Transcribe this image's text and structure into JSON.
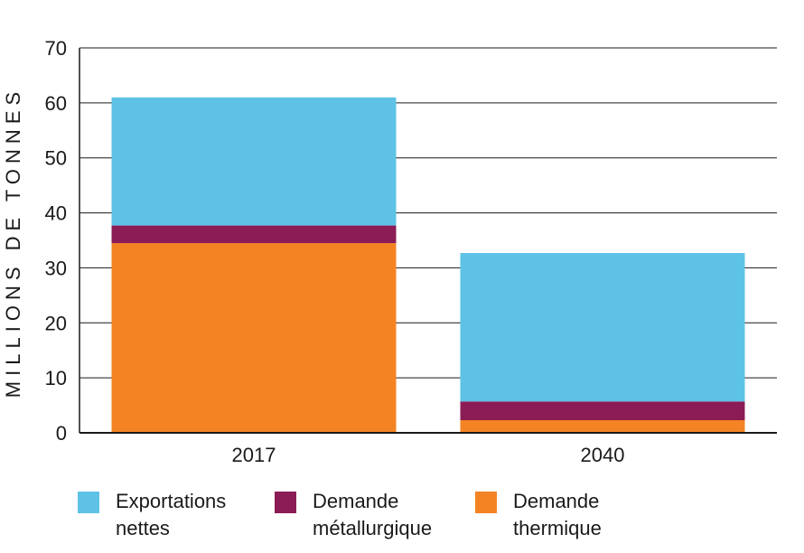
{
  "chart_data": {
    "type": "stacked-bar",
    "categories": [
      "2017",
      "2040"
    ],
    "series": [
      {
        "name": "Demande thermique",
        "color": "#f38323",
        "values": [
          34.5,
          2.3
        ]
      },
      {
        "name": "Demande métallurgique",
        "color": "#8b1c56",
        "values": [
          3.2,
          3.4
        ]
      },
      {
        "name": "Exportations nettes",
        "color": "#5ec2e6",
        "values": [
          23.3,
          27.0
        ]
      }
    ],
    "ylabel": "MILLIONS DE TONNES",
    "ylim": [
      0,
      70
    ],
    "yticks": [
      "0",
      "10",
      "20",
      "30",
      "40",
      "50",
      "60",
      "70"
    ],
    "grid": true
  },
  "legend": [
    {
      "line1": "Exportations",
      "line2": "nettes",
      "color": "#5ec2e6"
    },
    {
      "line1": "Demande",
      "line2": "métallurgique",
      "color": "#8b1c56"
    },
    {
      "line1": "Demande",
      "line2": "thermique",
      "color": "#f38323"
    }
  ]
}
